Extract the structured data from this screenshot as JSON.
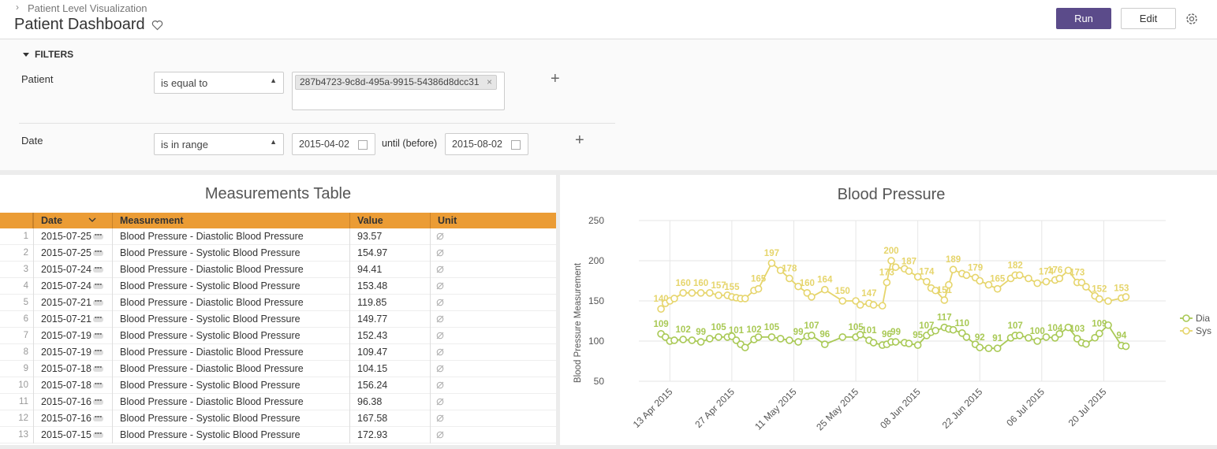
{
  "header": {
    "breadcrumb": "Patient Level Visualization",
    "title": "Patient Dashboard",
    "run": "Run",
    "edit": "Edit"
  },
  "filters": {
    "title": "FILTERS",
    "patient": {
      "label": "Patient",
      "operator": "is equal to",
      "value": "287b4723-9c8d-495a-9915-54386d8dcc31"
    },
    "date": {
      "label": "Date",
      "operator": "is in range",
      "from": "2015-04-02",
      "until_label": "until (before)",
      "to": "2015-08-02"
    }
  },
  "table": {
    "title": "Measurements Table",
    "headers": [
      "Date",
      "Measurement",
      "Value",
      "Unit"
    ],
    "rows": [
      [
        1,
        "2015-07-25",
        "Blood Pressure - Diastolic Blood Pressure",
        93.57
      ],
      [
        2,
        "2015-07-25",
        "Blood Pressure - Systolic Blood Pressure",
        154.97
      ],
      [
        3,
        "2015-07-24",
        "Blood Pressure - Diastolic Blood Pressure",
        94.41
      ],
      [
        4,
        "2015-07-24",
        "Blood Pressure - Systolic Blood Pressure",
        153.48
      ],
      [
        5,
        "2015-07-21",
        "Blood Pressure - Diastolic Blood Pressure",
        119.85
      ],
      [
        6,
        "2015-07-21",
        "Blood Pressure - Systolic Blood Pressure",
        149.77
      ],
      [
        7,
        "2015-07-19",
        "Blood Pressure - Systolic Blood Pressure",
        152.43
      ],
      [
        8,
        "2015-07-19",
        "Blood Pressure - Diastolic Blood Pressure",
        109.47
      ],
      [
        9,
        "2015-07-18",
        "Blood Pressure - Diastolic Blood Pressure",
        104.15
      ],
      [
        10,
        "2015-07-18",
        "Blood Pressure - Systolic Blood Pressure",
        156.24
      ],
      [
        11,
        "2015-07-16",
        "Blood Pressure - Diastolic Blood Pressure",
        96.38
      ],
      [
        12,
        "2015-07-16",
        "Blood Pressure - Systolic Blood Pressure",
        167.58
      ],
      [
        13,
        "2015-07-15",
        "Blood Pressure - Systolic Blood Pressure",
        172.93
      ]
    ]
  },
  "chart_data": {
    "type": "line",
    "title": "Blood Pressure",
    "y_label": "Blood Pressure Measurement",
    "x": [
      "2015-04-11",
      "2015-04-12",
      "2015-04-13",
      "2015-04-14",
      "2015-04-16",
      "2015-04-18",
      "2015-04-20",
      "2015-04-22",
      "2015-04-24",
      "2015-04-26",
      "2015-04-27",
      "2015-04-28",
      "2015-04-29",
      "2015-04-30",
      "2015-05-02",
      "2015-05-03",
      "2015-05-06",
      "2015-05-08",
      "2015-05-10",
      "2015-05-12",
      "2015-05-14",
      "2015-05-15",
      "2015-05-18",
      "2015-05-22",
      "2015-05-25",
      "2015-05-26",
      "2015-05-28",
      "2015-05-29",
      "2015-05-31",
      "2015-06-01",
      "2015-06-02",
      "2015-06-03",
      "2015-06-05",
      "2015-06-06",
      "2015-06-08",
      "2015-06-10",
      "2015-06-11",
      "2015-06-12",
      "2015-06-14",
      "2015-06-15",
      "2015-06-16",
      "2015-06-18",
      "2015-06-19",
      "2015-06-21",
      "2015-06-22",
      "2015-06-24",
      "2015-06-26",
      "2015-06-29",
      "2015-06-30",
      "2015-07-01",
      "2015-07-03",
      "2015-07-05",
      "2015-07-07",
      "2015-07-09",
      "2015-07-10",
      "2015-07-12",
      "2015-07-14",
      "2015-07-15",
      "2015-07-16",
      "2015-07-18",
      "2015-07-19",
      "2015-07-21",
      "2015-07-24",
      "2015-07-25"
    ],
    "series": [
      {
        "name": "Dia",
        "color": "#a9c955",
        "values": [
          109,
          105,
          100,
          101,
          102,
          101,
          99,
          103,
          105,
          105,
          106,
          101,
          96,
          92,
          102,
          105,
          105,
          103,
          101,
          99,
          106,
          107,
          96,
          105,
          105,
          108,
          101,
          98,
          95,
          96,
          99,
          99,
          98,
          97,
          95,
          107,
          111,
          113,
          117,
          115,
          114,
          110,
          105,
          96,
          92,
          91,
          91,
          104,
          107,
          107,
          104,
          100,
          105,
          104,
          109,
          117,
          103,
          98,
          96.38,
          104.15,
          109.47,
          119.85,
          94.41,
          93.57
        ],
        "value_labels": [
          "109",
          null,
          null,
          null,
          "102",
          null,
          "99",
          null,
          "105",
          null,
          null,
          "101",
          null,
          null,
          "102",
          null,
          "105",
          null,
          null,
          "99",
          null,
          "107",
          "96",
          null,
          "105",
          null,
          "101",
          null,
          null,
          "96",
          null,
          "99",
          null,
          null,
          "95",
          "107",
          null,
          null,
          "117",
          null,
          null,
          "110",
          null,
          null,
          "92",
          null,
          "91",
          null,
          "107",
          null,
          null,
          "100",
          null,
          "104",
          null,
          null,
          "103",
          null,
          null,
          null,
          "109",
          null,
          "94",
          null
        ]
      },
      {
        "name": "Sys",
        "color": "#e6d56c",
        "values": [
          140,
          147,
          150,
          153,
          160,
          160,
          160,
          160,
          157,
          157,
          155,
          154,
          153,
          153,
          163,
          165,
          197,
          188,
          178,
          168,
          160,
          155,
          164,
          150,
          150,
          145,
          147,
          145,
          144,
          173,
          200,
          192,
          190,
          187,
          180,
          174,
          166,
          163,
          151,
          170,
          189,
          184,
          182,
          179,
          175,
          170,
          165,
          178,
          182,
          182,
          178,
          172,
          174,
          176,
          178,
          188,
          173,
          172.93,
          167.58,
          156.24,
          152.43,
          149.77,
          153.48,
          154.97
        ],
        "value_labels": [
          "140",
          null,
          null,
          null,
          "160",
          null,
          "160",
          null,
          "157",
          null,
          "155",
          null,
          null,
          null,
          null,
          "165",
          "197",
          null,
          "178",
          null,
          "160",
          null,
          "164",
          "150",
          null,
          null,
          "147",
          null,
          null,
          "173",
          "200",
          null,
          null,
          "187",
          null,
          "174",
          null,
          null,
          "151",
          null,
          "189",
          null,
          null,
          "179",
          null,
          null,
          "165",
          null,
          "182",
          null,
          null,
          null,
          "174",
          "176",
          null,
          null,
          "173",
          null,
          null,
          null,
          "152",
          null,
          "153",
          null
        ]
      }
    ],
    "xlim": [
      "2015-04-06",
      "2015-08-03"
    ],
    "xticks": [
      {
        "value": "2015-04-13",
        "label": "13 Apr 2015"
      },
      {
        "value": "2015-04-27",
        "label": "27 Apr 2015"
      },
      {
        "value": "2015-05-11",
        "label": "11 May 2015"
      },
      {
        "value": "2015-05-25",
        "label": "25 May 2015"
      },
      {
        "value": "2015-06-08",
        "label": "08 Jun 2015"
      },
      {
        "value": "2015-06-22",
        "label": "22 Jun 2015"
      },
      {
        "value": "2015-07-06",
        "label": "06 Jul 2015"
      },
      {
        "value": "2015-07-20",
        "label": "20 Jul 2015"
      }
    ],
    "ylim": [
      50,
      250
    ],
    "yticks": [
      50,
      100,
      150,
      200,
      250
    ],
    "grid": true,
    "legend": "right"
  }
}
